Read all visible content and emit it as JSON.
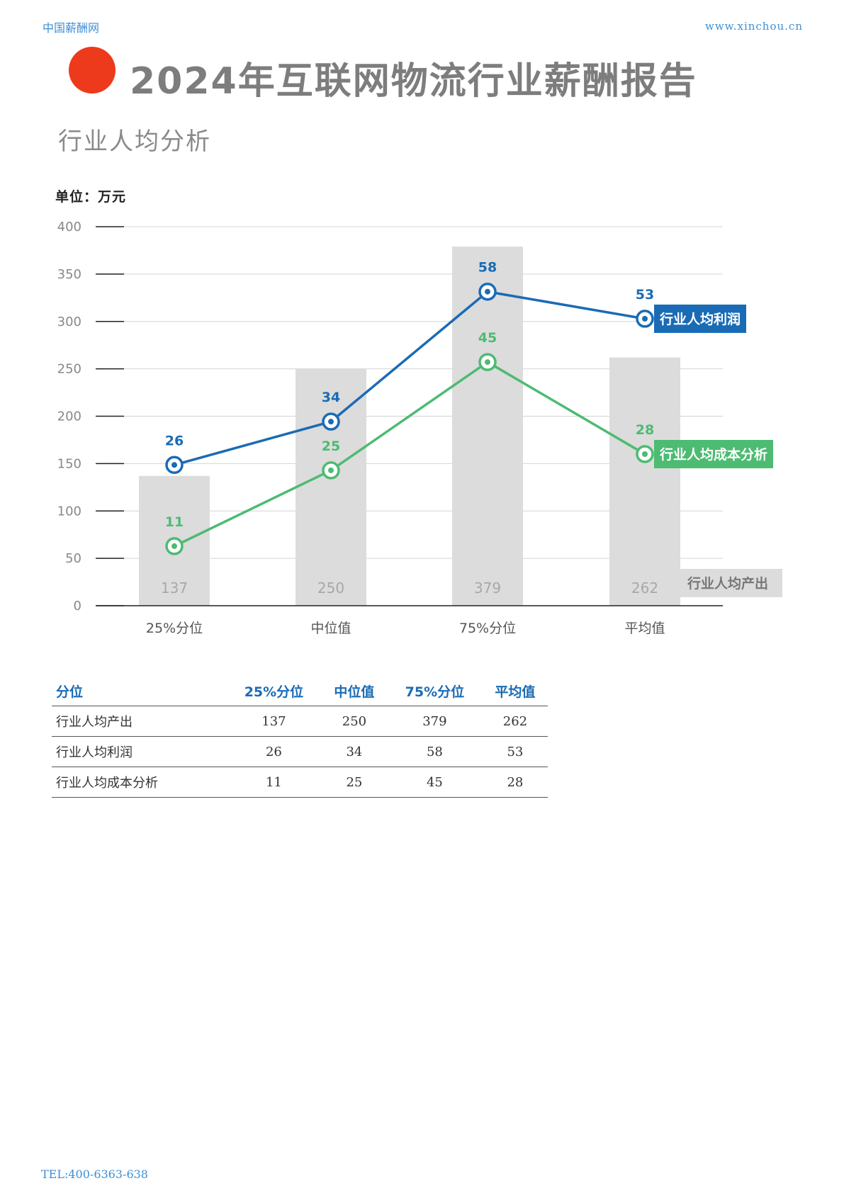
{
  "header": {
    "site_name": "中国薪酬网",
    "site_url": "www.xinchou.cn",
    "title": "2024年互联网物流行业薪酬报告",
    "subtitle": "行业人均分析"
  },
  "unit_label": "单位：万元",
  "chart_data": {
    "type": "bar",
    "categories": [
      "25%分位",
      "中位值",
      "75%分位",
      "平均值"
    ],
    "ylim": [
      0,
      400
    ],
    "yticks": [
      0,
      50,
      100,
      150,
      200,
      250,
      300,
      350,
      400
    ],
    "grid": true,
    "bar_series": {
      "name": "行业人均产出",
      "values": [
        137,
        250,
        379,
        262
      ],
      "color": "#dcdcdc",
      "label_color": "#a8a8a8"
    },
    "line_series": [
      {
        "name": "行业人均利润",
        "values": [
          26,
          34,
          58,
          53
        ],
        "color": "#1a6bb5"
      },
      {
        "name": "行业人均成本分析",
        "values": [
          11,
          25,
          45,
          28
        ],
        "color": "#4dbb72"
      }
    ]
  },
  "table": {
    "headers": [
      "分位",
      "25%分位",
      "中位值",
      "75%分位",
      "平均值"
    ],
    "rows": [
      {
        "label": "行业人均产出",
        "values": [
          "137",
          "250",
          "379",
          "262"
        ]
      },
      {
        "label": "行业人均利润",
        "values": [
          "26",
          "34",
          "58",
          "53"
        ]
      },
      {
        "label": "行业人均成本分析",
        "values": [
          "11",
          "25",
          "45",
          "28"
        ]
      }
    ]
  },
  "footer": {
    "tel": "TEL:400-6363-638"
  },
  "colors": {
    "accent_red": "#ee3a1c",
    "link_blue": "#3d8fd6",
    "profit_blue": "#1a6bb5",
    "cost_green": "#4dbb72"
  }
}
